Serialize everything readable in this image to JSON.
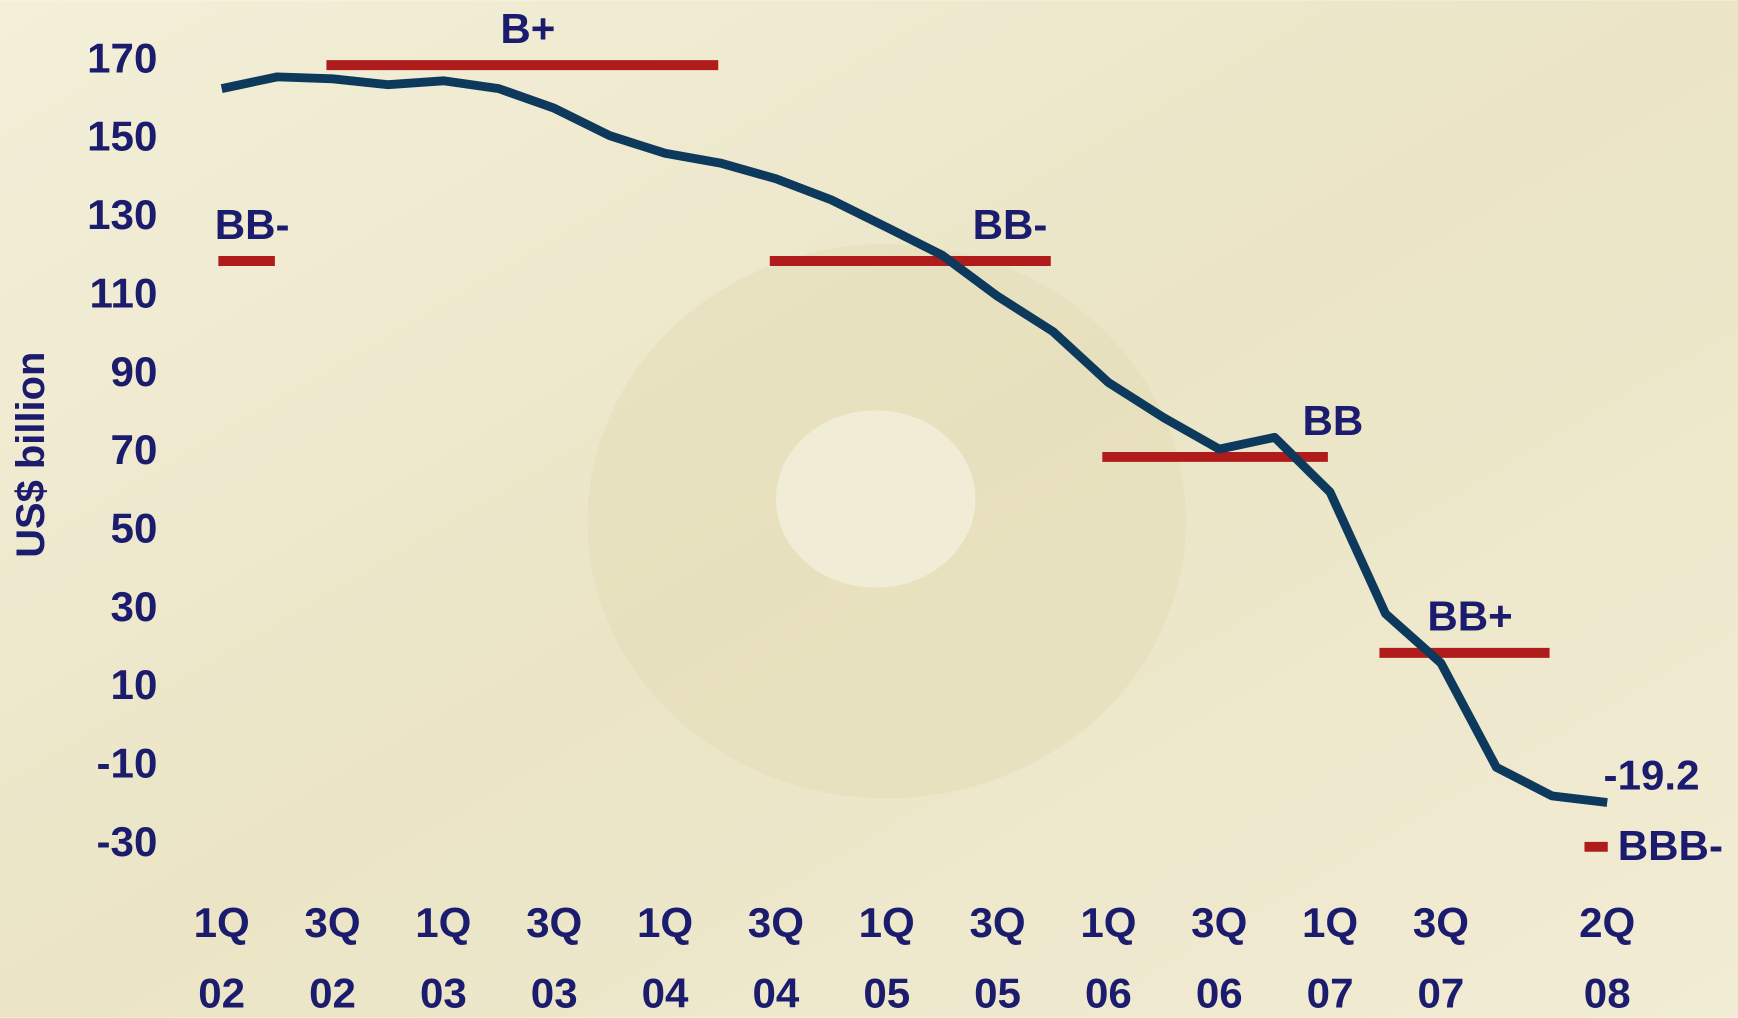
{
  "chart_data": {
    "type": "line",
    "y_label": "US$ billion",
    "categories": [
      "1Q\n02",
      null,
      "3Q\n02",
      null,
      "1Q\n03",
      null,
      "3Q\n03",
      null,
      "1Q\n04",
      null,
      "3Q\n04",
      null,
      "1Q\n05",
      null,
      "3Q\n05",
      null,
      "1Q\n06",
      null,
      "3Q\n06",
      null,
      "1Q\n07",
      null,
      "3Q\n07",
      null,
      null,
      "2Q\n08"
    ],
    "series": [
      {
        "color": "#0d3a5c",
        "values": [
          163,
          166,
          165.5,
          164,
          165,
          163,
          158,
          151,
          146.5,
          144,
          140,
          134.6,
          127.6,
          120.5,
          110,
          101,
          88,
          79,
          71,
          74,
          60,
          29,
          16.4,
          -10.2,
          -17.5,
          -19.2
        ],
        "value_labels": [
          null,
          null,
          null,
          null,
          null,
          null,
          null,
          null,
          null,
          null,
          null,
          null,
          null,
          null,
          null,
          null,
          null,
          null,
          null,
          null,
          null,
          null,
          null,
          null,
          null,
          "-19.2"
        ]
      }
    ],
    "ratings": {
      "color": "#b01c1c",
      "items": [
        {
          "label": "BB-",
          "value": 119,
          "from": 0,
          "to": 0.9
        },
        {
          "label": "B+",
          "value": 169,
          "from": 1.95,
          "to": 8.9
        },
        {
          "label": "BB-",
          "value": 119,
          "from": 9.95,
          "to": 14.9
        },
        {
          "label": "BB",
          "value": 69,
          "from": 15.95,
          "to": 19.9
        },
        {
          "label": "BB+",
          "value": 19,
          "from": 20.95,
          "to": 23.9
        },
        {
          "label": "BBB-",
          "value": -30.5,
          "from": 24.65,
          "to": 24.95
        }
      ]
    },
    "ylim": [
      -30,
      170
    ],
    "yticks": [
      -30,
      -10,
      10,
      30,
      50,
      70,
      90,
      110,
      130,
      150,
      170
    ],
    "grid": false
  }
}
